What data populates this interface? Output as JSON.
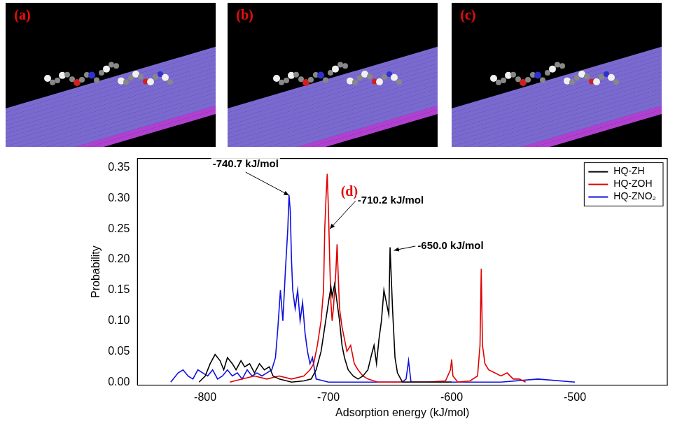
{
  "panels": [
    {
      "label": "(a)"
    },
    {
      "label": "(b)"
    },
    {
      "label": "(c)"
    }
  ],
  "chart_data": {
    "type": "line",
    "panel_label": "(d)",
    "x_label": "Adsorption energy (kJ/mol)",
    "y_label": "Probability",
    "xlim": [
      -855,
      -425
    ],
    "xticks": [
      -800,
      -700,
      -600,
      -500
    ],
    "ylim": [
      -0.005,
      0.365
    ],
    "yticks": [
      {
        "value": 0,
        "label": "0.00"
      },
      {
        "value": 0.05,
        "label": "0.05"
      },
      {
        "value": 0.1,
        "label": "0.10"
      },
      {
        "value": 0.15,
        "label": "0.15"
      },
      {
        "value": 0.2,
        "label": "0.20"
      },
      {
        "value": 0.25,
        "label": "0.25"
      },
      {
        "value": 0.3,
        "label": "0.30"
      },
      {
        "value": 0.35,
        "label": "0.35"
      }
    ],
    "grid": false,
    "legend": "upper right",
    "series": [
      {
        "name": "HQ-ZH",
        "color": "#000000",
        "x": [
          -805,
          -800,
          -796,
          -792,
          -788,
          -785,
          -782,
          -778,
          -775,
          -771,
          -768,
          -764,
          -760,
          -756,
          -752,
          -748,
          -745,
          -740,
          -730,
          -720,
          -714,
          -710,
          -706,
          -703,
          -700,
          -698,
          -697,
          -695,
          -693,
          -691,
          -689,
          -687,
          -684,
          -680,
          -676,
          -672,
          -668,
          -665,
          -663,
          -661,
          -659,
          -657,
          -655,
          -653,
          -651,
          -650,
          -648,
          -646,
          -644,
          -640,
          -630,
          -600
        ],
        "values": [
          0,
          0.01,
          0.03,
          0.045,
          0.035,
          0.02,
          0.04,
          0.03,
          0.02,
          0.035,
          0.025,
          0.03,
          0.015,
          0.03,
          0.02,
          0.025,
          0.01,
          0.005,
          0,
          0.002,
          0.005,
          0.02,
          0.05,
          0.09,
          0.13,
          0.155,
          0.14,
          0.16,
          0.13,
          0.1,
          0.06,
          0.04,
          0.02,
          0.01,
          0.005,
          0.01,
          0.02,
          0.045,
          0.06,
          0.03,
          0.07,
          0.1,
          0.15,
          0.13,
          0.11,
          0.22,
          0.12,
          0.04,
          0.015,
          0,
          0,
          0
        ]
      },
      {
        "name": "HQ-ZOH",
        "color": "#e00000",
        "x": [
          -780,
          -770,
          -760,
          -750,
          -740,
          -730,
          -720,
          -715,
          -712,
          -709,
          -706,
          -704,
          -703,
          -702,
          -701,
          -700,
          -699,
          -698,
          -697,
          -696,
          -695,
          -694,
          -693,
          -692,
          -691,
          -689,
          -687,
          -685,
          -682,
          -679,
          -676,
          -672,
          -668,
          -660,
          -640,
          -620,
          -605,
          -601,
          -600,
          -599,
          -595,
          -585,
          -579,
          -577,
          -576,
          -575,
          -573,
          -570,
          -565,
          -560,
          -555,
          -550,
          -545,
          -540
        ],
        "values": [
          0,
          0.005,
          0.01,
          0.005,
          0.01,
          0.005,
          0.01,
          0.02,
          0.03,
          0.06,
          0.1,
          0.15,
          0.25,
          0.3,
          0.34,
          0.28,
          0.2,
          0.13,
          0.1,
          0.12,
          0.15,
          0.18,
          0.225,
          0.17,
          0.12,
          0.09,
          0.07,
          0.05,
          0.06,
          0.03,
          0.02,
          0.01,
          0.005,
          0,
          0,
          0,
          0.002,
          0.02,
          0.037,
          0.01,
          0,
          0.002,
          0.01,
          0.06,
          0.185,
          0.06,
          0.03,
          0.02,
          0.015,
          0.01,
          0.015,
          0.005,
          0.005,
          0
        ]
      },
      {
        "name": "HQ-ZNO₂",
        "color": "#1010e0",
        "x": [
          -828,
          -822,
          -818,
          -814,
          -810,
          -806,
          -802,
          -798,
          -794,
          -790,
          -786,
          -782,
          -778,
          -774,
          -770,
          -766,
          -762,
          -758,
          -754,
          -750,
          -746,
          -743,
          -741,
          -739,
          -737,
          -735,
          -733,
          -732,
          -731,
          -730,
          -729,
          -727,
          -725,
          -723,
          -721,
          -719,
          -717,
          -715,
          -713,
          -710,
          -700,
          -680,
          -660,
          -640,
          -637,
          -635,
          -633,
          -620,
          -600,
          -560,
          -530,
          -500
        ],
        "values": [
          0,
          0.015,
          0.02,
          0.01,
          0.005,
          0.02,
          0.015,
          0.01,
          0.02,
          0.005,
          0.01,
          0.02,
          0.01,
          0.015,
          0.005,
          0.02,
          0.01,
          0.015,
          0.01,
          0.015,
          0.02,
          0.04,
          0.09,
          0.15,
          0.1,
          0.18,
          0.25,
          0.305,
          0.28,
          0.2,
          0.15,
          0.12,
          0.15,
          0.1,
          0.13,
          0.08,
          0.05,
          0.03,
          0.04,
          0.005,
          0,
          0,
          0,
          0,
          0.005,
          0.035,
          0,
          0,
          0,
          0,
          0.005,
          0
        ]
      }
    ],
    "annotations": [
      {
        "text": "-740.7 kJ/mol",
        "x": -732,
        "y": 0.305
      },
      {
        "text": "-710.2 kJ/mol",
        "x": -699,
        "y": 0.25
      },
      {
        "text": "-650.0 kJ/mol",
        "x": -647,
        "y": 0.215
      }
    ]
  }
}
